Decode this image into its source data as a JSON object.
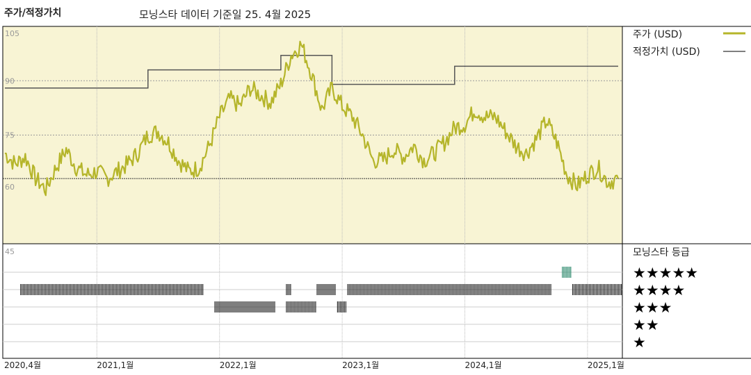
{
  "header": {
    "chart_title": "주가/적정가치",
    "source_note": "모닝스타 데이터 기준일 25. 4월 2025"
  },
  "legend": {
    "price_label": "주가 (USD)",
    "fair_label": "적정가치 (USD)",
    "rating_title": "모닝스타 등급",
    "stars": [
      "★★★★★",
      "★★★★",
      "★★★",
      "★★",
      "★"
    ]
  },
  "colors": {
    "price": "#b5b52a",
    "fair": "#555555",
    "panel_bg": "#f8f4d4",
    "rating_bar": "#2a2a2a",
    "rating_bar_5": "#2e8b6e"
  },
  "chart_data": [
    {
      "type": "line",
      "x_tick_labels": [
        "2020,4월",
        "2021,1월",
        "2022,1월",
        "2023,1월",
        "2024,1월",
        "2025,1월"
      ],
      "y_tick_labels": [
        "105",
        "90",
        "75",
        "60",
        "45"
      ],
      "ylim": [
        45,
        105
      ],
      "reference_line": 63,
      "series": [
        {
          "name": "주가 (USD)",
          "points": [
            [
              "2020-04",
              70
            ],
            [
              "2020-05",
              67
            ],
            [
              "2020-06",
              69
            ],
            [
              "2020-07",
              63
            ],
            [
              "2020-08",
              60
            ],
            [
              "2020-09",
              66
            ],
            [
              "2020-10",
              71
            ],
            [
              "2020-11",
              66
            ],
            [
              "2020-12",
              64
            ],
            [
              "2021-01",
              65
            ],
            [
              "2021-02",
              63
            ],
            [
              "2021-03",
              65
            ],
            [
              "2021-04",
              67
            ],
            [
              "2021-05",
              70
            ],
            [
              "2021-06",
              75
            ],
            [
              "2021-07",
              76
            ],
            [
              "2021-08",
              73
            ],
            [
              "2021-09",
              68
            ],
            [
              "2021-10",
              65
            ],
            [
              "2021-11",
              66
            ],
            [
              "2021-12",
              72
            ],
            [
              "2022-01",
              80
            ],
            [
              "2022-02",
              85
            ],
            [
              "2022-03",
              83
            ],
            [
              "2022-04",
              88
            ],
            [
              "2022-05",
              86
            ],
            [
              "2022-06",
              84
            ],
            [
              "2022-07",
              89
            ],
            [
              "2022-08",
              97
            ],
            [
              "2022-09",
              100
            ],
            [
              "2022-10",
              92
            ],
            [
              "2022-11",
              82
            ],
            [
              "2022-12",
              88
            ],
            [
              "2023-01",
              83
            ],
            [
              "2023-02",
              80
            ],
            [
              "2023-03",
              75
            ],
            [
              "2023-04",
              68
            ],
            [
              "2023-05",
              68
            ],
            [
              "2023-06",
              71
            ],
            [
              "2023-07",
              69
            ],
            [
              "2023-08",
              72
            ],
            [
              "2023-09",
              68
            ],
            [
              "2023-10",
              70
            ],
            [
              "2023-11",
              73
            ],
            [
              "2023-12",
              77
            ],
            [
              "2024-01",
              78
            ],
            [
              "2024-02",
              82
            ],
            [
              "2024-03",
              80
            ],
            [
              "2024-04",
              80
            ],
            [
              "2024-05",
              76
            ],
            [
              "2024-06",
              72
            ],
            [
              "2024-07",
              70
            ],
            [
              "2024-08",
              74
            ],
            [
              "2024-09",
              79
            ],
            [
              "2024-10",
              73
            ],
            [
              "2024-11",
              64
            ],
            [
              "2024-12",
              61
            ],
            [
              "2025-01",
              64
            ],
            [
              "2025-02",
              66
            ],
            [
              "2025-03",
              62
            ],
            [
              "2025-04",
              63
            ]
          ]
        },
        {
          "name": "적정가치 (USD)",
          "steps": [
            [
              "2020-04",
              88
            ],
            [
              "2021-06",
              88
            ],
            [
              "2021-06",
              93
            ],
            [
              "2022-07",
              93
            ],
            [
              "2022-07",
              97
            ],
            [
              "2022-12",
              97
            ],
            [
              "2022-12",
              89
            ],
            [
              "2023-12",
              89
            ],
            [
              "2023-12",
              94
            ],
            [
              "2025-04",
              94
            ]
          ]
        }
      ]
    },
    {
      "type": "bar",
      "title": "모닝스타 등급",
      "rating_periods": [
        {
          "stars": 4,
          "from": "2020-05",
          "to": "2021-11"
        },
        {
          "stars": 3,
          "from": "2021-12",
          "to": "2022-06"
        },
        {
          "stars": 4,
          "from": "2022-07",
          "to": "2022-07"
        },
        {
          "stars": 3,
          "from": "2022-07",
          "to": "2022-10"
        },
        {
          "stars": 4,
          "from": "2022-10",
          "to": "2022-12"
        },
        {
          "stars": 3,
          "from": "2022-12",
          "to": "2023-01"
        },
        {
          "stars": 4,
          "from": "2023-01",
          "to": "2024-09"
        },
        {
          "stars": 5,
          "from": "2024-10",
          "to": "2024-11"
        },
        {
          "stars": 4,
          "from": "2024-11",
          "to": "2025-04"
        }
      ]
    }
  ]
}
